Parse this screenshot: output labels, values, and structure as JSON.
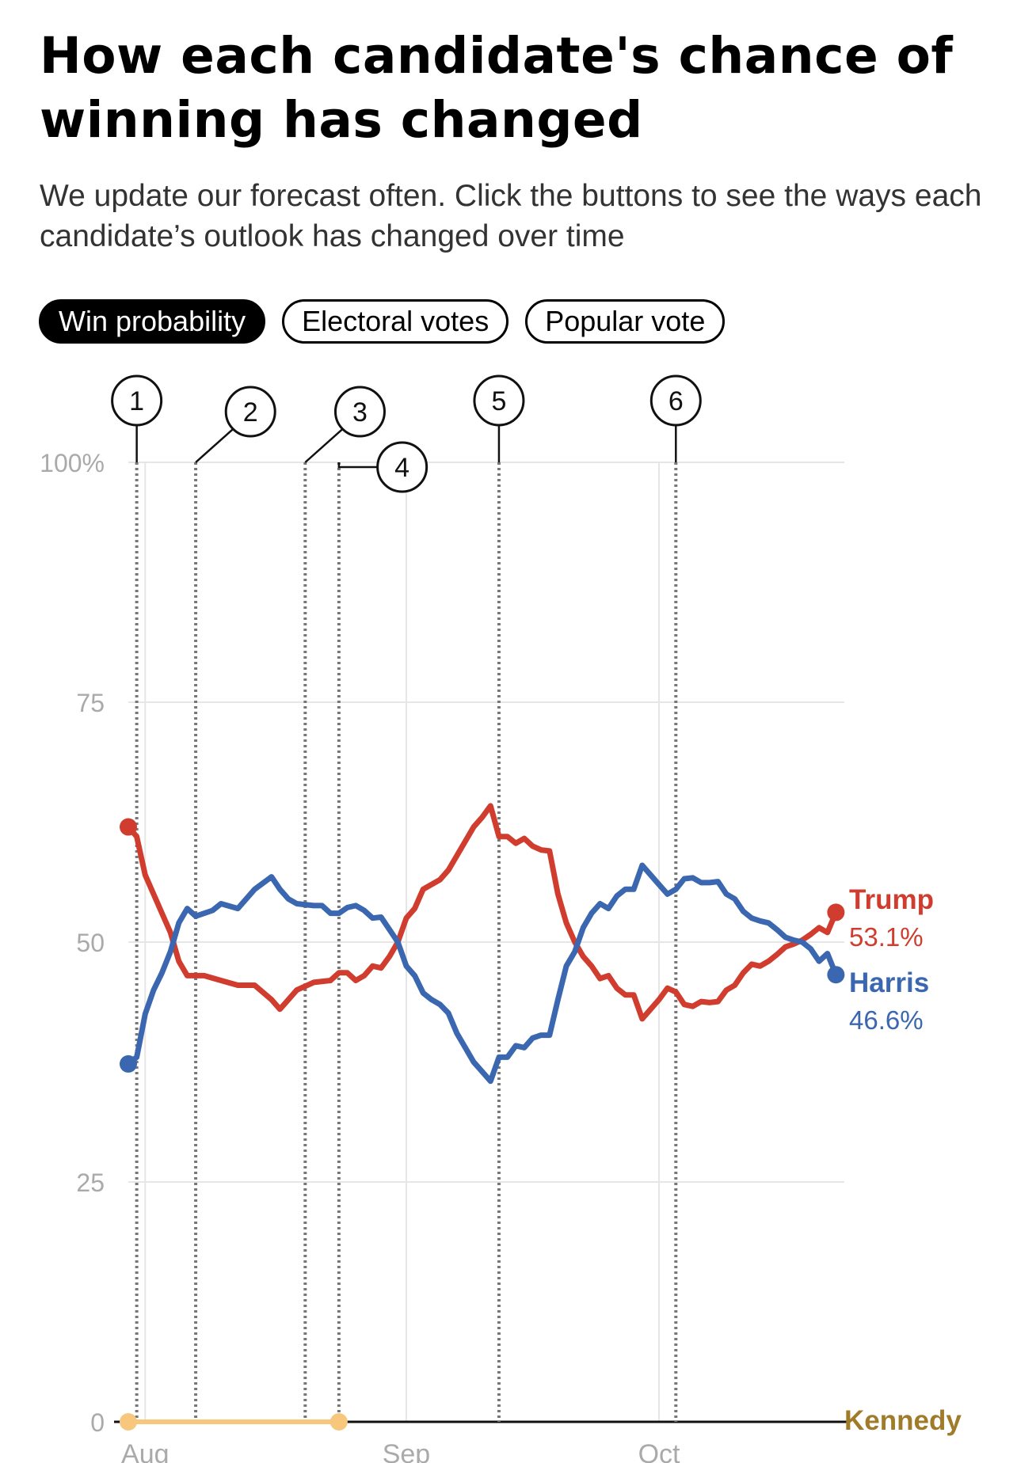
{
  "header": {
    "title": "How each candidate's chance of winning has changed",
    "subtitle": "We update our forecast often. Click the buttons to see the ways each candidate’s outlook has changed over time"
  },
  "tabs": [
    {
      "label": "Win probability",
      "active": true
    },
    {
      "label": "Electoral votes",
      "active": false
    },
    {
      "label": "Popular vote",
      "active": false
    }
  ],
  "colors": {
    "trump": "#D03D2E",
    "harris": "#3A67AF",
    "kennedy_label": "#A07C2A",
    "kennedy_line": "#F7C77E",
    "grid": "#E6E6E6",
    "axis_text": "#AAAAAA"
  },
  "chart_data": {
    "type": "line",
    "xlabel": "",
    "ylabel": "",
    "ylim": [
      0,
      100
    ],
    "y_ticks": [
      0,
      25,
      50,
      75,
      100
    ],
    "y_tick_labels": [
      "0",
      "25",
      "50",
      "75",
      "100%"
    ],
    "x_range": [
      "2024-07-30",
      "2024-10-23"
    ],
    "x_ticks": [
      {
        "date": "2024-08-01",
        "label": "Aug"
      },
      {
        "date": "2024-09-01",
        "label": "Sep"
      },
      {
        "date": "2024-10-01",
        "label": "Oct"
      }
    ],
    "grid": true,
    "series": [
      {
        "name": "Trump",
        "color": "#D03D2E",
        "end_label": "53.1%",
        "points": [
          [
            "2024-07-30",
            62
          ],
          [
            "2024-07-31",
            61
          ],
          [
            "2024-08-01",
            57
          ],
          [
            "2024-08-02",
            55
          ],
          [
            "2024-08-03",
            53
          ],
          [
            "2024-08-04",
            51
          ],
          [
            "2024-08-05",
            48
          ],
          [
            "2024-08-06",
            46.5
          ],
          [
            "2024-08-08",
            46.5
          ],
          [
            "2024-08-10",
            46
          ],
          [
            "2024-08-12",
            45.5
          ],
          [
            "2024-08-14",
            45.5
          ],
          [
            "2024-08-16",
            44
          ],
          [
            "2024-08-17",
            43
          ],
          [
            "2024-08-18",
            44
          ],
          [
            "2024-08-19",
            45
          ],
          [
            "2024-08-21",
            45.8
          ],
          [
            "2024-08-23",
            46
          ],
          [
            "2024-08-24",
            46.8
          ],
          [
            "2024-08-25",
            46.8
          ],
          [
            "2024-08-26",
            46
          ],
          [
            "2024-08-27",
            46.5
          ],
          [
            "2024-08-28",
            47.5
          ],
          [
            "2024-08-29",
            47.3
          ],
          [
            "2024-08-30",
            48.5
          ],
          [
            "2024-08-31",
            50
          ],
          [
            "2024-09-01",
            52.5
          ],
          [
            "2024-09-02",
            53.5
          ],
          [
            "2024-09-03",
            55.5
          ],
          [
            "2024-09-05",
            56.5
          ],
          [
            "2024-09-06",
            57.5
          ],
          [
            "2024-09-07",
            59
          ],
          [
            "2024-09-08",
            60.5
          ],
          [
            "2024-09-09",
            62
          ],
          [
            "2024-09-10",
            63
          ],
          [
            "2024-09-11",
            64.2
          ],
          [
            "2024-09-12",
            61
          ],
          [
            "2024-09-13",
            61
          ],
          [
            "2024-09-14",
            60.3
          ],
          [
            "2024-09-15",
            60.8
          ],
          [
            "2024-09-16",
            60
          ],
          [
            "2024-09-17",
            59.6
          ],
          [
            "2024-09-18",
            59.5
          ],
          [
            "2024-09-19",
            55
          ],
          [
            "2024-09-20",
            52
          ],
          [
            "2024-09-21",
            50
          ],
          [
            "2024-09-22",
            48.5
          ],
          [
            "2024-09-23",
            47.5
          ],
          [
            "2024-09-24",
            46.2
          ],
          [
            "2024-09-25",
            46.5
          ],
          [
            "2024-09-26",
            45.2
          ],
          [
            "2024-09-27",
            44.5
          ],
          [
            "2024-09-28",
            44.5
          ],
          [
            "2024-09-29",
            42
          ],
          [
            "2024-09-30",
            43
          ],
          [
            "2024-10-01",
            44
          ],
          [
            "2024-10-02",
            45.2
          ],
          [
            "2024-10-03",
            44.8
          ],
          [
            "2024-10-04",
            43.5
          ],
          [
            "2024-10-05",
            43.3
          ],
          [
            "2024-10-06",
            43.8
          ],
          [
            "2024-10-07",
            43.7
          ],
          [
            "2024-10-08",
            43.8
          ],
          [
            "2024-10-09",
            45
          ],
          [
            "2024-10-10",
            45.5
          ],
          [
            "2024-10-11",
            46.8
          ],
          [
            "2024-10-12",
            47.7
          ],
          [
            "2024-10-13",
            47.5
          ],
          [
            "2024-10-14",
            48
          ],
          [
            "2024-10-15",
            48.7
          ],
          [
            "2024-10-16",
            49.5
          ],
          [
            "2024-10-17",
            49.8
          ],
          [
            "2024-10-18",
            50.2
          ],
          [
            "2024-10-19",
            50.8
          ],
          [
            "2024-10-20",
            51.5
          ],
          [
            "2024-10-21",
            51
          ],
          [
            "2024-10-22",
            53.1
          ]
        ]
      },
      {
        "name": "Harris",
        "color": "#3A67AF",
        "end_label": "46.6%",
        "points": [
          [
            "2024-07-30",
            37.3
          ],
          [
            "2024-07-31",
            38
          ],
          [
            "2024-08-01",
            42.5
          ],
          [
            "2024-08-02",
            45
          ],
          [
            "2024-08-03",
            46.8
          ],
          [
            "2024-08-04",
            49
          ],
          [
            "2024-08-05",
            52
          ],
          [
            "2024-08-06",
            53.5
          ],
          [
            "2024-08-07",
            52.7
          ],
          [
            "2024-08-09",
            53.3
          ],
          [
            "2024-08-10",
            54
          ],
          [
            "2024-08-12",
            53.5
          ],
          [
            "2024-08-14",
            55.5
          ],
          [
            "2024-08-16",
            56.8
          ],
          [
            "2024-08-17",
            55.5
          ],
          [
            "2024-08-18",
            54.5
          ],
          [
            "2024-08-19",
            54
          ],
          [
            "2024-08-21",
            53.8
          ],
          [
            "2024-08-22",
            53.8
          ],
          [
            "2024-08-23",
            53
          ],
          [
            "2024-08-24",
            53
          ],
          [
            "2024-08-25",
            53.6
          ],
          [
            "2024-08-26",
            53.8
          ],
          [
            "2024-08-27",
            53.3
          ],
          [
            "2024-08-28",
            52.5
          ],
          [
            "2024-08-29",
            52.6
          ],
          [
            "2024-08-30",
            51.3
          ],
          [
            "2024-08-31",
            50
          ],
          [
            "2024-09-01",
            47.5
          ],
          [
            "2024-09-02",
            46.5
          ],
          [
            "2024-09-03",
            44.7
          ],
          [
            "2024-09-04",
            44
          ],
          [
            "2024-09-05",
            43.5
          ],
          [
            "2024-09-06",
            42.6
          ],
          [
            "2024-09-07",
            40.5
          ],
          [
            "2024-09-08",
            39
          ],
          [
            "2024-09-09",
            37.5
          ],
          [
            "2024-09-10",
            36.5
          ],
          [
            "2024-09-11",
            35.5
          ],
          [
            "2024-09-12",
            38
          ],
          [
            "2024-09-13",
            38
          ],
          [
            "2024-09-14",
            39.2
          ],
          [
            "2024-09-15",
            39
          ],
          [
            "2024-09-16",
            40
          ],
          [
            "2024-09-17",
            40.3
          ],
          [
            "2024-09-18",
            40.3
          ],
          [
            "2024-09-19",
            44
          ],
          [
            "2024-09-20",
            47.5
          ],
          [
            "2024-09-21",
            49
          ],
          [
            "2024-09-22",
            51.5
          ],
          [
            "2024-09-23",
            53
          ],
          [
            "2024-09-24",
            54
          ],
          [
            "2024-09-25",
            53.5
          ],
          [
            "2024-09-26",
            54.8
          ],
          [
            "2024-09-27",
            55.5
          ],
          [
            "2024-09-28",
            55.5
          ],
          [
            "2024-09-29",
            58
          ],
          [
            "2024-09-30",
            57
          ],
          [
            "2024-10-01",
            56
          ],
          [
            "2024-10-02",
            55
          ],
          [
            "2024-10-03",
            55.5
          ],
          [
            "2024-10-04",
            56.6
          ],
          [
            "2024-10-05",
            56.7
          ],
          [
            "2024-10-06",
            56.2
          ],
          [
            "2024-10-07",
            56.2
          ],
          [
            "2024-10-08",
            56.3
          ],
          [
            "2024-10-09",
            55
          ],
          [
            "2024-10-10",
            54.5
          ],
          [
            "2024-10-11",
            53.2
          ],
          [
            "2024-10-12",
            52.5
          ],
          [
            "2024-10-13",
            52.2
          ],
          [
            "2024-10-14",
            52
          ],
          [
            "2024-10-15",
            51.3
          ],
          [
            "2024-10-16",
            50.5
          ],
          [
            "2024-10-17",
            50.2
          ],
          [
            "2024-10-18",
            50
          ],
          [
            "2024-10-19",
            49.3
          ],
          [
            "2024-10-20",
            48
          ],
          [
            "2024-10-21",
            48.8
          ],
          [
            "2024-10-22",
            46.6
          ]
        ]
      },
      {
        "name": "Kennedy",
        "color": "#F7C77E",
        "points": [
          [
            "2024-07-30",
            0
          ],
          [
            "2024-08-24",
            0
          ]
        ]
      }
    ],
    "annotations": [
      {
        "label": "1",
        "date": "2024-07-31",
        "badge_offset_days": 0,
        "badge_level": "high",
        "elbow": false
      },
      {
        "label": "2",
        "date": "2024-08-07",
        "badge_offset_days": 6.5,
        "badge_level": "mid",
        "elbow": true
      },
      {
        "label": "3",
        "date": "2024-08-20",
        "badge_offset_days": 6.5,
        "badge_level": "mid",
        "elbow": true
      },
      {
        "label": "4",
        "date": "2024-08-24",
        "badge_offset_days": 7.5,
        "badge_level": "low",
        "elbow": "flat"
      },
      {
        "label": "5",
        "date": "2024-09-12",
        "badge_offset_days": 0,
        "badge_level": "high",
        "elbow": false
      },
      {
        "label": "6",
        "date": "2024-10-03",
        "badge_offset_days": 0,
        "badge_level": "high",
        "elbow": false
      }
    ]
  }
}
